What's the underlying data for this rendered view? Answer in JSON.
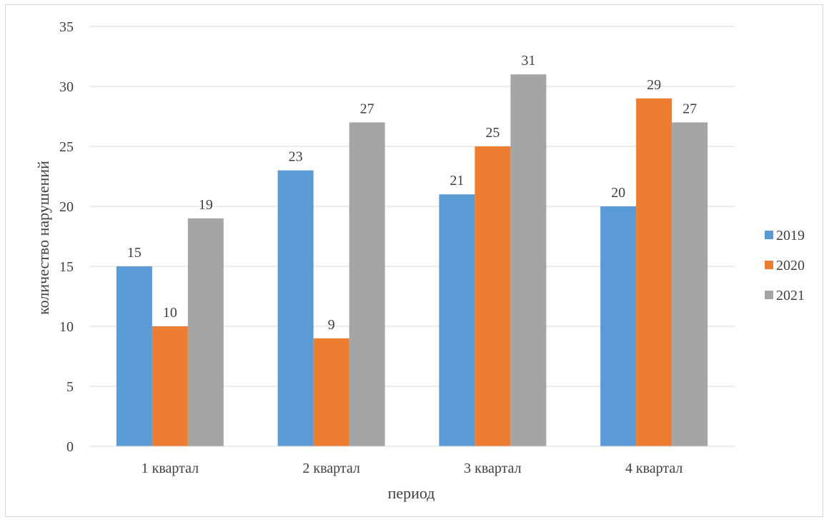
{
  "chart_data": {
    "type": "bar",
    "title": "",
    "xlabel": "период",
    "ylabel": "количество нарушений",
    "categories": [
      "1 квартал",
      "2 квартал",
      "3 квартал",
      "4 квартал"
    ],
    "series": [
      {
        "name": "2019",
        "color": "#5b9bd5",
        "values": [
          15,
          23,
          21,
          20
        ]
      },
      {
        "name": "2020",
        "color": "#ed7d31",
        "values": [
          10,
          9,
          25,
          29
        ]
      },
      {
        "name": "2021",
        "color": "#a5a5a5",
        "values": [
          19,
          27,
          31,
          27
        ]
      }
    ],
    "ylim": [
      0,
      35
    ],
    "yticks": [
      0,
      5,
      10,
      15,
      20,
      25,
      30,
      35
    ],
    "grid": true,
    "legend_position": "right",
    "data_labels": true
  }
}
